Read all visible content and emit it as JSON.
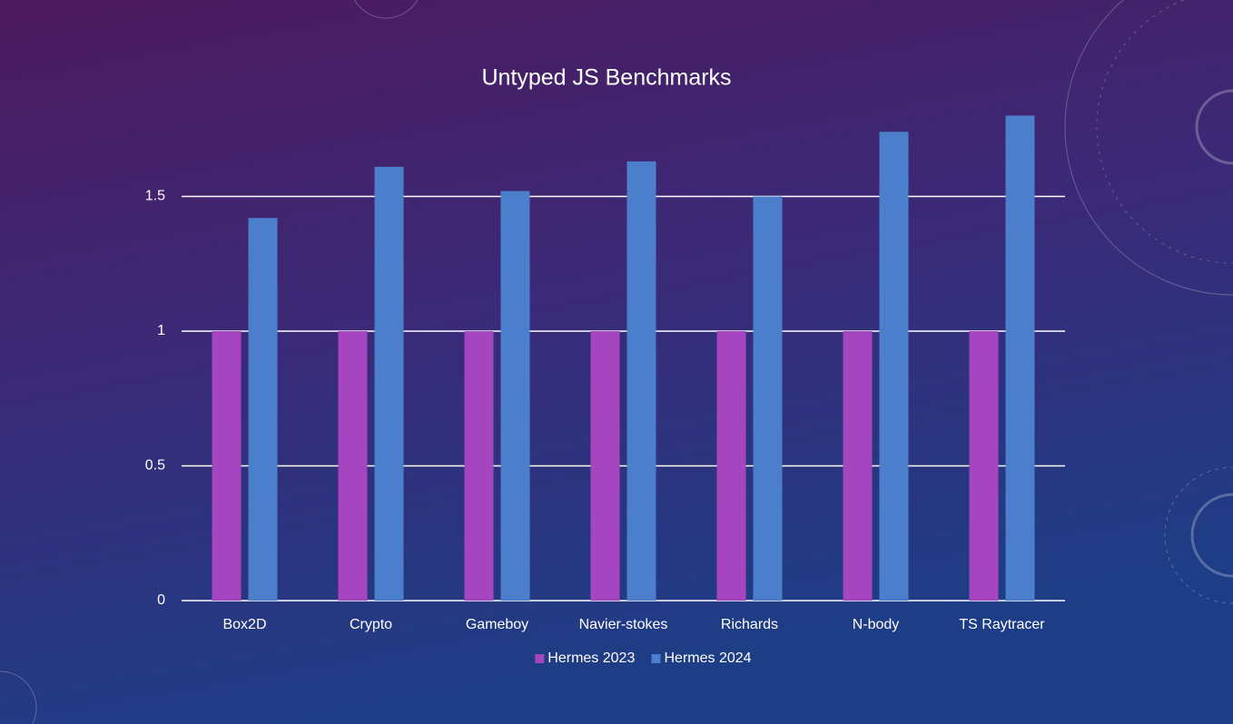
{
  "chart_data": {
    "type": "bar",
    "title": "Untyped JS Benchmarks",
    "categories": [
      "Box2D",
      "Crypto",
      "Gameboy",
      "Navier-stokes",
      "Richards",
      "N-body",
      "TS Raytracer"
    ],
    "series": [
      {
        "name": "Hermes 2023",
        "color": "#a545bf",
        "values": [
          1,
          1,
          1,
          1,
          1,
          1,
          1
        ]
      },
      {
        "name": "Hermes 2024",
        "color": "#4b7fcb",
        "values": [
          1.42,
          1.61,
          1.52,
          1.63,
          1.5,
          1.74,
          1.8
        ]
      }
    ],
    "ylim": [
      0,
      1.8
    ],
    "yticks": [
      0,
      0.5,
      1,
      1.5
    ],
    "grid": true,
    "legend": "bottom"
  }
}
